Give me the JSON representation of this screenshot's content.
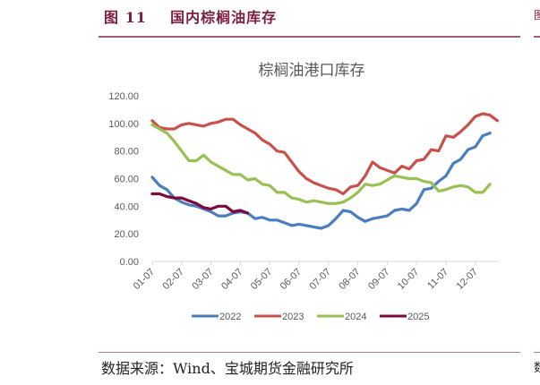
{
  "figure": {
    "label": "图 11",
    "title": "国内棕榈油库存",
    "source": "数据来源：Wind、宝城期货金融研究所"
  },
  "colors": {
    "accent": "#7a1d3f",
    "rule": "#a45a78",
    "axis": "#d9d9d9",
    "tick_text": "#595959"
  },
  "chart_data": {
    "type": "line",
    "title": "棕榈油港口库存",
    "xlabel": "",
    "ylabel": "",
    "ylim": [
      0,
      120
    ],
    "yticks": [
      "0.00",
      "20.00",
      "40.00",
      "60.00",
      "80.00",
      "100.00",
      "120.00"
    ],
    "categories": [
      "01-07",
      "02-07",
      "03-07",
      "04-07",
      "05-07",
      "06-07",
      "07-07",
      "08-07",
      "09-07",
      "10-07",
      "11-07",
      "12-07"
    ],
    "grid": false,
    "legend_position": "bottom",
    "x_note": "weekly observations; x given in months from 01-07 (0 = 01-07, 11 = 12-07)",
    "series": [
      {
        "name": "2022",
        "color": "#4a7ebf",
        "x": [
          0,
          0.25,
          0.5,
          0.75,
          1.0,
          1.25,
          1.5,
          1.75,
          2.0,
          2.25,
          2.5,
          2.75,
          3.0,
          3.25,
          3.5,
          3.75,
          4.0,
          4.25,
          4.5,
          4.75,
          5.0,
          5.25,
          5.5,
          5.75,
          6.0,
          6.25,
          6.5,
          6.75,
          7.0,
          7.25,
          7.5,
          7.75,
          8.0,
          8.25,
          8.5,
          8.75,
          9.0,
          9.25,
          9.5,
          9.75,
          10.0,
          10.25,
          10.5,
          10.75,
          11.0,
          11.25,
          11.5
        ],
        "values": [
          61,
          55,
          52,
          46,
          43,
          41,
          40,
          38,
          36,
          33,
          33,
          35,
          36,
          35,
          31,
          32,
          30,
          30,
          28,
          26,
          27,
          26,
          25,
          24,
          26,
          31,
          37,
          36,
          32,
          29,
          31,
          32,
          33,
          37,
          38,
          37,
          42,
          52,
          53,
          58,
          62,
          71,
          74,
          81,
          83,
          91,
          93
        ]
      },
      {
        "name": "2023",
        "color": "#c9514b",
        "x": [
          0,
          0.25,
          0.5,
          0.75,
          1.0,
          1.25,
          1.5,
          1.75,
          2.0,
          2.25,
          2.5,
          2.75,
          3.0,
          3.25,
          3.5,
          3.75,
          4.0,
          4.25,
          4.5,
          4.75,
          5.0,
          5.25,
          5.5,
          5.75,
          6.0,
          6.25,
          6.5,
          6.75,
          7.0,
          7.25,
          7.5,
          7.75,
          8.0,
          8.25,
          8.5,
          8.75,
          9.0,
          9.25,
          9.5,
          9.75,
          10.0,
          10.25,
          10.5,
          10.75,
          11.0,
          11.25,
          11.5,
          11.75
        ],
        "values": [
          102,
          97,
          96,
          96,
          99,
          100,
          99,
          98,
          100,
          101,
          103,
          103,
          99,
          96,
          93,
          88,
          85,
          80,
          79,
          72,
          65,
          60,
          57,
          55,
          53,
          52,
          49,
          54,
          55,
          62,
          72,
          68,
          66,
          64,
          69,
          67,
          73,
          74,
          81,
          80,
          91,
          90,
          94,
          99,
          105,
          107,
          106,
          102
        ]
      },
      {
        "name": "2024",
        "color": "#99c054",
        "x": [
          0,
          0.25,
          0.5,
          0.75,
          1.0,
          1.25,
          1.5,
          1.75,
          2.0,
          2.25,
          2.5,
          2.75,
          3.0,
          3.25,
          3.5,
          3.75,
          4.0,
          4.25,
          4.5,
          4.75,
          5.0,
          5.25,
          5.5,
          5.75,
          6.0,
          6.25,
          6.5,
          6.75,
          7.0,
          7.25,
          7.5,
          7.75,
          8.0,
          8.25,
          8.5,
          8.75,
          9.0,
          9.25,
          9.5,
          9.75,
          10.0,
          10.25,
          10.5,
          10.75,
          11.0,
          11.25,
          11.5
        ],
        "values": [
          99,
          96,
          93,
          87,
          80,
          73,
          73,
          77,
          72,
          69,
          66,
          63,
          63,
          59,
          60,
          56,
          55,
          50,
          50,
          46,
          45,
          43,
          44,
          43,
          42,
          42,
          43,
          46,
          50,
          56,
          55,
          56,
          59,
          62,
          61,
          60,
          60,
          58,
          57,
          51,
          52,
          54,
          55,
          54,
          50,
          50,
          56
        ]
      },
      {
        "name": "2025",
        "color": "#7b0a3a",
        "x": [
          0,
          0.25,
          0.5,
          0.75,
          1.0,
          1.25,
          1.5,
          1.75,
          2.0,
          2.25,
          2.5,
          2.75,
          3.0,
          3.25
        ],
        "values": [
          49,
          49,
          47,
          46,
          46,
          44,
          42,
          39,
          38,
          40,
          40,
          36,
          37,
          35
        ]
      }
    ]
  }
}
